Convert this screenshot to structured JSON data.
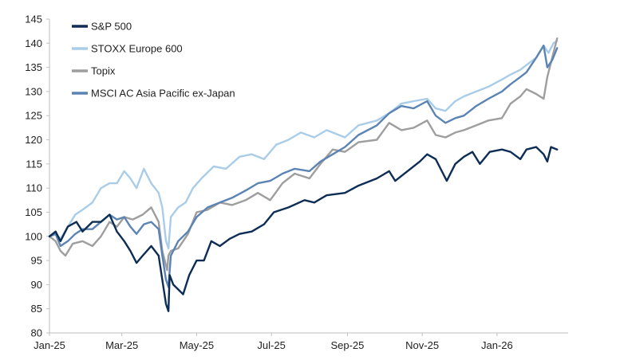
{
  "chart_data": {
    "type": "line",
    "title": "",
    "xlabel": "",
    "ylabel": "",
    "ylim": [
      80,
      145
    ],
    "yticks": [
      80,
      85,
      90,
      95,
      100,
      105,
      110,
      115,
      120,
      125,
      130,
      135,
      140,
      145
    ],
    "xlim": [
      "2025-01-01",
      "2026-02-28"
    ],
    "xticks": [
      {
        "date": "2025-01-01",
        "label": "Jan-25"
      },
      {
        "date": "2025-03-01",
        "label": "Mar-25"
      },
      {
        "date": "2025-05-01",
        "label": "May-25"
      },
      {
        "date": "2025-07-01",
        "label": "Jul-25"
      },
      {
        "date": "2025-09-01",
        "label": "Sep-25"
      },
      {
        "date": "2025-11-01",
        "label": "Nov-25"
      },
      {
        "date": "2026-01-01",
        "label": "Jan-26"
      }
    ],
    "grid": false,
    "legend_position": "top-left",
    "series": [
      {
        "name": "S&P 500",
        "color": "#0d2d55",
        "points": [
          [
            "2025-01-01",
            100
          ],
          [
            "2025-01-06",
            101
          ],
          [
            "2025-01-10",
            99
          ],
          [
            "2025-01-16",
            102
          ],
          [
            "2025-01-23",
            103
          ],
          [
            "2025-01-28",
            101
          ],
          [
            "2025-02-05",
            103
          ],
          [
            "2025-02-12",
            103
          ],
          [
            "2025-02-19",
            104.5
          ],
          [
            "2025-02-25",
            101
          ],
          [
            "2025-03-03",
            99
          ],
          [
            "2025-03-08",
            97
          ],
          [
            "2025-03-13",
            94.5
          ],
          [
            "2025-03-18",
            96
          ],
          [
            "2025-03-25",
            98
          ],
          [
            "2025-03-31",
            96
          ],
          [
            "2025-04-03",
            91
          ],
          [
            "2025-04-06",
            86
          ],
          [
            "2025-04-08",
            84.5
          ],
          [
            "2025-04-09",
            92
          ],
          [
            "2025-04-12",
            90
          ],
          [
            "2025-04-16",
            89
          ],
          [
            "2025-04-20",
            88
          ],
          [
            "2025-04-25",
            92
          ],
          [
            "2025-05-01",
            95
          ],
          [
            "2025-05-07",
            95
          ],
          [
            "2025-05-13",
            99
          ],
          [
            "2025-05-20",
            98
          ],
          [
            "2025-05-28",
            99.5
          ],
          [
            "2025-06-05",
            100.5
          ],
          [
            "2025-06-15",
            101
          ],
          [
            "2025-06-25",
            102.5
          ],
          [
            "2025-07-03",
            105
          ],
          [
            "2025-07-15",
            106
          ],
          [
            "2025-07-28",
            107.5
          ],
          [
            "2025-08-05",
            107
          ],
          [
            "2025-08-15",
            108.5
          ],
          [
            "2025-08-30",
            109
          ],
          [
            "2025-09-10",
            110.5
          ],
          [
            "2025-09-25",
            112
          ],
          [
            "2025-10-05",
            113.5
          ],
          [
            "2025-10-10",
            111.5
          ],
          [
            "2025-10-20",
            113.5
          ],
          [
            "2025-10-30",
            115.5
          ],
          [
            "2025-11-05",
            117
          ],
          [
            "2025-11-12",
            116
          ],
          [
            "2025-11-18",
            113
          ],
          [
            "2025-11-21",
            111.5
          ],
          [
            "2025-11-28",
            115
          ],
          [
            "2025-12-05",
            116.5
          ],
          [
            "2025-12-12",
            117.5
          ],
          [
            "2025-12-18",
            115
          ],
          [
            "2025-12-26",
            117.5
          ],
          [
            "2026-01-05",
            118
          ],
          [
            "2026-01-12",
            117.5
          ],
          [
            "2026-01-20",
            116
          ],
          [
            "2026-01-25",
            118
          ],
          [
            "2026-02-02",
            118.5
          ],
          [
            "2026-02-08",
            117
          ],
          [
            "2026-02-11",
            115.5
          ],
          [
            "2026-02-14",
            118.5
          ],
          [
            "2026-02-19",
            118
          ]
        ]
      },
      {
        "name": "STOXX Europe 600",
        "color": "#a9cde8",
        "points": [
          [
            "2025-01-01",
            100
          ],
          [
            "2025-01-06",
            100.5
          ],
          [
            "2025-01-10",
            99.5
          ],
          [
            "2025-01-16",
            102
          ],
          [
            "2025-01-22",
            104.5
          ],
          [
            "2025-01-28",
            105.5
          ],
          [
            "2025-02-05",
            107
          ],
          [
            "2025-02-12",
            110
          ],
          [
            "2025-02-19",
            111
          ],
          [
            "2025-02-25",
            111
          ],
          [
            "2025-03-03",
            113.5
          ],
          [
            "2025-03-08",
            112
          ],
          [
            "2025-03-13",
            110
          ],
          [
            "2025-03-19",
            114
          ],
          [
            "2025-03-25",
            111
          ],
          [
            "2025-03-31",
            109
          ],
          [
            "2025-04-03",
            106
          ],
          [
            "2025-04-06",
            99
          ],
          [
            "2025-04-08",
            97.5
          ],
          [
            "2025-04-10",
            104
          ],
          [
            "2025-04-16",
            106
          ],
          [
            "2025-04-22",
            107
          ],
          [
            "2025-04-28",
            110
          ],
          [
            "2025-05-05",
            112
          ],
          [
            "2025-05-15",
            114.5
          ],
          [
            "2025-05-25",
            114
          ],
          [
            "2025-06-05",
            116.5
          ],
          [
            "2025-06-15",
            117
          ],
          [
            "2025-06-25",
            116
          ],
          [
            "2025-07-05",
            119
          ],
          [
            "2025-07-15",
            120
          ],
          [
            "2025-07-25",
            121.5
          ],
          [
            "2025-08-05",
            120.5
          ],
          [
            "2025-08-15",
            122
          ],
          [
            "2025-08-30",
            120.5
          ],
          [
            "2025-09-10",
            123
          ],
          [
            "2025-09-25",
            124
          ],
          [
            "2025-10-05",
            125.5
          ],
          [
            "2025-10-15",
            127.5
          ],
          [
            "2025-10-25",
            128
          ],
          [
            "2025-11-05",
            128.5
          ],
          [
            "2025-11-12",
            126.5
          ],
          [
            "2025-11-20",
            126
          ],
          [
            "2025-11-28",
            128
          ],
          [
            "2025-12-05",
            129
          ],
          [
            "2025-12-15",
            130
          ],
          [
            "2025-12-25",
            131
          ],
          [
            "2026-01-05",
            132.5
          ],
          [
            "2026-01-12",
            133.5
          ],
          [
            "2026-01-20",
            134.5
          ],
          [
            "2026-01-25",
            135.5
          ],
          [
            "2026-02-02",
            137
          ],
          [
            "2026-02-08",
            139.5
          ],
          [
            "2026-02-12",
            138
          ],
          [
            "2026-02-16",
            140
          ],
          [
            "2026-02-19",
            140.5
          ]
        ]
      },
      {
        "name": "Topix",
        "color": "#9e9e9e",
        "points": [
          [
            "2025-01-01",
            100
          ],
          [
            "2025-01-06",
            99
          ],
          [
            "2025-01-10",
            97
          ],
          [
            "2025-01-14",
            96
          ],
          [
            "2025-01-20",
            98.5
          ],
          [
            "2025-01-28",
            99
          ],
          [
            "2025-02-05",
            98
          ],
          [
            "2025-02-12",
            100
          ],
          [
            "2025-02-19",
            103
          ],
          [
            "2025-02-25",
            102
          ],
          [
            "2025-03-03",
            104
          ],
          [
            "2025-03-10",
            103.5
          ],
          [
            "2025-03-18",
            104.5
          ],
          [
            "2025-03-25",
            106
          ],
          [
            "2025-03-31",
            103
          ],
          [
            "2025-04-03",
            97
          ],
          [
            "2025-04-07",
            93
          ],
          [
            "2025-04-08",
            96
          ],
          [
            "2025-04-10",
            97
          ],
          [
            "2025-04-16",
            97.5
          ],
          [
            "2025-04-24",
            100.5
          ],
          [
            "2025-05-01",
            105
          ],
          [
            "2025-05-10",
            105.5
          ],
          [
            "2025-05-20",
            107
          ],
          [
            "2025-05-30",
            106.5
          ],
          [
            "2025-06-10",
            107.5
          ],
          [
            "2025-06-20",
            109
          ],
          [
            "2025-06-30",
            107.5
          ],
          [
            "2025-07-10",
            111
          ],
          [
            "2025-07-20",
            113
          ],
          [
            "2025-08-01",
            112
          ],
          [
            "2025-08-10",
            115
          ],
          [
            "2025-08-20",
            118
          ],
          [
            "2025-08-30",
            117.5
          ],
          [
            "2025-09-10",
            119.5
          ],
          [
            "2025-09-25",
            120
          ],
          [
            "2025-10-05",
            123.5
          ],
          [
            "2025-10-15",
            122
          ],
          [
            "2025-10-25",
            122.5
          ],
          [
            "2025-11-05",
            124
          ],
          [
            "2025-11-12",
            121
          ],
          [
            "2025-11-20",
            120.5
          ],
          [
            "2025-11-28",
            121.5
          ],
          [
            "2025-12-05",
            122
          ],
          [
            "2025-12-15",
            123
          ],
          [
            "2025-12-25",
            124
          ],
          [
            "2026-01-05",
            124.5
          ],
          [
            "2026-01-12",
            127.5
          ],
          [
            "2026-01-20",
            129
          ],
          [
            "2026-01-25",
            130.5
          ],
          [
            "2026-02-02",
            129.5
          ],
          [
            "2026-02-08",
            128.5
          ],
          [
            "2026-02-11",
            133
          ],
          [
            "2026-02-15",
            137
          ],
          [
            "2026-02-19",
            141
          ]
        ]
      },
      {
        "name": "MSCI AC Asia Pacific ex-Japan",
        "color": "#5b83b4",
        "points": [
          [
            "2025-01-01",
            100
          ],
          [
            "2025-01-06",
            100.5
          ],
          [
            "2025-01-10",
            98
          ],
          [
            "2025-01-16",
            99
          ],
          [
            "2025-01-22",
            100.5
          ],
          [
            "2025-01-28",
            101.5
          ],
          [
            "2025-02-05",
            101.5
          ],
          [
            "2025-02-12",
            103
          ],
          [
            "2025-02-19",
            104.5
          ],
          [
            "2025-02-25",
            103.5
          ],
          [
            "2025-03-03",
            104
          ],
          [
            "2025-03-08",
            102
          ],
          [
            "2025-03-13",
            100.5
          ],
          [
            "2025-03-19",
            102.5
          ],
          [
            "2025-03-25",
            103
          ],
          [
            "2025-03-31",
            101.5
          ],
          [
            "2025-04-03",
            96
          ],
          [
            "2025-04-06",
            91
          ],
          [
            "2025-04-08",
            89.5
          ],
          [
            "2025-04-10",
            96
          ],
          [
            "2025-04-16",
            99
          ],
          [
            "2025-04-24",
            101
          ],
          [
            "2025-05-01",
            104
          ],
          [
            "2025-05-10",
            106
          ],
          [
            "2025-05-20",
            107
          ],
          [
            "2025-05-30",
            108
          ],
          [
            "2025-06-10",
            109.5
          ],
          [
            "2025-06-20",
            111
          ],
          [
            "2025-06-30",
            111.5
          ],
          [
            "2025-07-10",
            113
          ],
          [
            "2025-07-20",
            114
          ],
          [
            "2025-08-01",
            113.5
          ],
          [
            "2025-08-10",
            115.5
          ],
          [
            "2025-08-20",
            117
          ],
          [
            "2025-08-30",
            118.5
          ],
          [
            "2025-09-10",
            121
          ],
          [
            "2025-09-25",
            123
          ],
          [
            "2025-10-05",
            125.5
          ],
          [
            "2025-10-15",
            127
          ],
          [
            "2025-10-25",
            126.5
          ],
          [
            "2025-11-05",
            128
          ],
          [
            "2025-11-12",
            125
          ],
          [
            "2025-11-20",
            123.5
          ],
          [
            "2025-11-28",
            124.5
          ],
          [
            "2025-12-05",
            125
          ],
          [
            "2025-12-15",
            127
          ],
          [
            "2025-12-25",
            128.5
          ],
          [
            "2026-01-05",
            130
          ],
          [
            "2026-01-12",
            131.5
          ],
          [
            "2026-01-20",
            133
          ],
          [
            "2026-01-25",
            134
          ],
          [
            "2026-02-02",
            137
          ],
          [
            "2026-02-08",
            139.5
          ],
          [
            "2026-02-11",
            135
          ],
          [
            "2026-02-15",
            136.5
          ],
          [
            "2026-02-19",
            139
          ]
        ]
      }
    ]
  }
}
